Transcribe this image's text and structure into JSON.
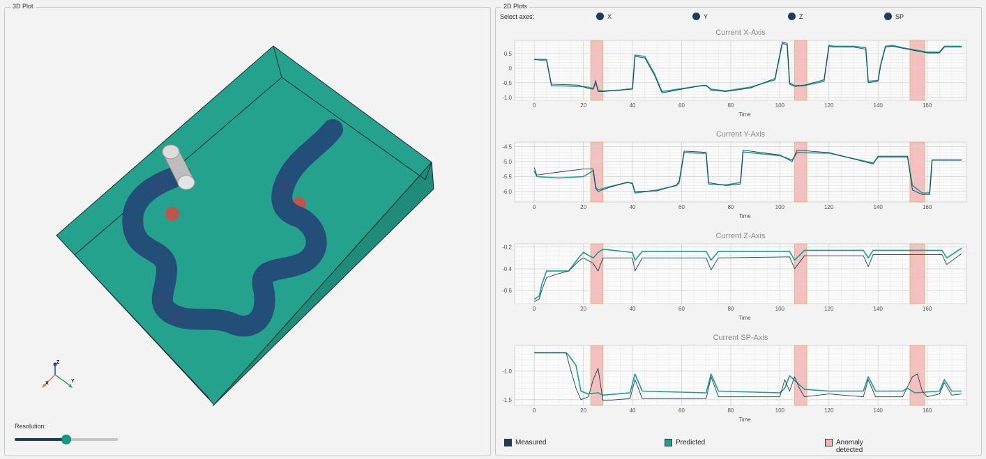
{
  "panel_3d": {
    "title": "3D Plot",
    "axis_labels": {
      "z": "Z",
      "x": "X",
      "y": "Y"
    },
    "resolution_label": "Resolution:",
    "resolution_value": 0.5,
    "colors": {
      "workpiece": "#25a28e",
      "toolpath": "#234a77",
      "anomaly": "#c0544a",
      "tool": "#cfcfcf"
    }
  },
  "panel_2d": {
    "title": "2D Plots",
    "select_axes_label": "Select axes:",
    "axis_options": [
      {
        "label": "X"
      },
      {
        "label": "Y"
      },
      {
        "label": "Z"
      },
      {
        "label": "SP"
      }
    ],
    "legend": [
      {
        "label": "Measured",
        "color": "#1d3d5c"
      },
      {
        "label": "Predicted",
        "color": "#17a08a"
      },
      {
        "label": "Anomaly detected",
        "color": "#f2b5b5"
      }
    ]
  },
  "chart_data": [
    {
      "type": "line",
      "title": "Current X-Axis",
      "xlabel": "Time",
      "xlim": [
        -8,
        176
      ],
      "ylim": [
        -1.1,
        0.95
      ],
      "xticks": [
        0,
        20,
        40,
        60,
        80,
        100,
        120,
        140,
        160
      ],
      "yticks": [
        0.5,
        0,
        -0.5,
        -1.0
      ],
      "ytick_labels": [
        "0.5",
        "0",
        "-0.5",
        "-1.0"
      ],
      "anomaly_ranges": [
        [
          23,
          28
        ],
        [
          106,
          111
        ],
        [
          153,
          159
        ]
      ],
      "series": [
        {
          "name": "Predicted",
          "x": [
            0,
            5,
            7,
            18,
            22,
            24,
            25,
            26,
            28,
            35,
            40,
            41,
            45,
            49,
            52,
            60,
            68,
            70,
            72,
            78,
            88,
            98,
            101,
            103,
            104,
            106,
            110,
            118,
            120,
            122,
            130,
            135,
            136,
            140,
            141,
            143,
            146,
            150,
            160,
            165,
            167,
            174
          ],
          "y": [
            0.3,
            0.3,
            -0.6,
            -0.62,
            -0.65,
            -0.7,
            -0.5,
            -0.75,
            -0.78,
            -0.75,
            -0.7,
            0.45,
            0.4,
            -0.2,
            -0.8,
            -0.7,
            -0.6,
            -0.6,
            -0.72,
            -0.78,
            -0.65,
            -0.4,
            0.85,
            0.8,
            -0.55,
            -0.62,
            -0.6,
            -0.45,
            0.78,
            0.75,
            0.75,
            0.7,
            -0.45,
            -0.42,
            0.1,
            0.75,
            0.78,
            0.7,
            0.55,
            0.55,
            0.75,
            0.75
          ]
        },
        {
          "name": "Measured",
          "x": [
            0,
            5,
            7,
            18,
            22,
            24,
            25,
            26,
            28,
            35,
            40,
            41,
            45,
            49,
            52,
            60,
            68,
            70,
            72,
            78,
            88,
            98,
            101,
            103,
            104,
            106,
            110,
            118,
            120,
            122,
            130,
            135,
            136,
            140,
            141,
            143,
            146,
            150,
            160,
            165,
            167,
            174
          ],
          "y": [
            0.3,
            0.25,
            -0.55,
            -0.58,
            -0.7,
            -0.72,
            -0.42,
            -0.8,
            -0.8,
            -0.75,
            -0.72,
            0.4,
            0.35,
            -0.25,
            -0.85,
            -0.72,
            -0.6,
            -0.58,
            -0.75,
            -0.8,
            -0.68,
            -0.35,
            0.9,
            0.85,
            -0.5,
            -0.6,
            -0.58,
            -0.4,
            0.75,
            0.72,
            0.72,
            0.65,
            -0.5,
            -0.45,
            0.05,
            0.72,
            0.75,
            0.68,
            0.52,
            0.52,
            0.72,
            0.72
          ]
        }
      ]
    },
    {
      "type": "line",
      "title": "Current Y-Axis",
      "xlabel": "Time",
      "xlim": [
        -8,
        176
      ],
      "ylim": [
        -6.35,
        -4.35
      ],
      "xticks": [
        0,
        20,
        40,
        60,
        80,
        100,
        120,
        140,
        160
      ],
      "yticks": [
        -4.5,
        -5.0,
        -5.5,
        -6.0
      ],
      "ytick_labels": [
        "-4.5",
        "-5.0",
        "-5.5",
        "-6.0"
      ],
      "anomaly_ranges": [
        [
          23,
          28
        ],
        [
          106,
          111
        ],
        [
          153,
          159
        ]
      ],
      "series": [
        {
          "name": "Predicted",
          "x": [
            0,
            1,
            10,
            20,
            24,
            25,
            26,
            30,
            38,
            40,
            41,
            50,
            58,
            59,
            61,
            68,
            70,
            71,
            78,
            84,
            85,
            100,
            105,
            107,
            120,
            138,
            140,
            150,
            152,
            154,
            158,
            161,
            162,
            174
          ],
          "y": [
            -5.3,
            -5.5,
            -5.55,
            -5.5,
            -5.3,
            -5.85,
            -5.95,
            -5.85,
            -5.7,
            -5.72,
            -6.05,
            -5.95,
            -5.8,
            -5.7,
            -4.7,
            -4.72,
            -4.72,
            -5.75,
            -5.78,
            -5.7,
            -4.68,
            -4.8,
            -4.95,
            -4.7,
            -4.72,
            -5.05,
            -4.85,
            -4.85,
            -4.85,
            -5.8,
            -6.05,
            -6.05,
            -4.95,
            -4.95
          ]
        },
        {
          "name": "Measured",
          "x": [
            0,
            1,
            10,
            20,
            24,
            25,
            26,
            30,
            38,
            40,
            41,
            50,
            58,
            59,
            61,
            68,
            70,
            71,
            78,
            84,
            85,
            100,
            105,
            107,
            120,
            138,
            140,
            150,
            152,
            154,
            158,
            161,
            162,
            174
          ],
          "y": [
            -5.2,
            -5.45,
            -5.35,
            -5.25,
            -5.25,
            -5.9,
            -6.0,
            -5.88,
            -5.68,
            -5.75,
            -6.0,
            -5.98,
            -5.78,
            -5.65,
            -4.65,
            -4.68,
            -4.7,
            -5.7,
            -5.8,
            -5.75,
            -4.62,
            -4.78,
            -5.0,
            -4.62,
            -4.7,
            -5.08,
            -4.82,
            -4.82,
            -4.82,
            -5.95,
            -6.1,
            -6.1,
            -4.95,
            -4.95
          ]
        }
      ]
    },
    {
      "type": "line",
      "title": "Current Z-Axis",
      "xlabel": "Time",
      "xlim": [
        -8,
        176
      ],
      "ylim": [
        -0.72,
        -0.17
      ],
      "xticks": [
        0,
        20,
        40,
        60,
        80,
        100,
        120,
        140,
        160
      ],
      "yticks": [
        -0.2,
        -0.4,
        -0.6
      ],
      "ytick_labels": [
        "-0.2",
        "-0.4",
        "-0.6"
      ],
      "anomaly_ranges": [
        [
          23,
          28
        ],
        [
          106,
          111
        ],
        [
          153,
          159
        ]
      ],
      "series": [
        {
          "name": "Predicted",
          "x": [
            0,
            2,
            3,
            5,
            9,
            14,
            18,
            20,
            24,
            26,
            28,
            40,
            41,
            44,
            70,
            72,
            75,
            104,
            106,
            110,
            134,
            136,
            138,
            166,
            168,
            174
          ],
          "y": [
            -0.68,
            -0.65,
            -0.55,
            -0.42,
            -0.42,
            -0.42,
            -0.3,
            -0.25,
            -0.3,
            -0.25,
            -0.22,
            -0.25,
            -0.32,
            -0.24,
            -0.24,
            -0.32,
            -0.24,
            -0.24,
            -0.32,
            -0.23,
            -0.23,
            -0.3,
            -0.23,
            -0.23,
            -0.3,
            -0.21
          ]
        },
        {
          "name": "Measured",
          "x": [
            0,
            2,
            3,
            5,
            9,
            14,
            18,
            20,
            24,
            26,
            28,
            40,
            41,
            44,
            70,
            72,
            75,
            104,
            106,
            110,
            134,
            136,
            138,
            166,
            168,
            174
          ],
          "y": [
            -0.7,
            -0.68,
            -0.6,
            -0.48,
            -0.45,
            -0.42,
            -0.33,
            -0.3,
            -0.35,
            -0.42,
            -0.3,
            -0.3,
            -0.42,
            -0.3,
            -0.3,
            -0.41,
            -0.3,
            -0.29,
            -0.4,
            -0.28,
            -0.28,
            -0.38,
            -0.27,
            -0.27,
            -0.36,
            -0.26
          ]
        }
      ]
    },
    {
      "type": "line",
      "title": "Current SP-Axis",
      "xlabel": "Time",
      "xlim": [
        -8,
        176
      ],
      "ylim": [
        -1.6,
        -0.55
      ],
      "xticks": [
        0,
        20,
        40,
        60,
        80,
        100,
        120,
        140,
        160
      ],
      "yticks": [
        -1.0,
        -1.5
      ],
      "ytick_labels": [
        "-1.0",
        "-1.5"
      ],
      "anomaly_ranges": [
        [
          23,
          28
        ],
        [
          106,
          111
        ],
        [
          153,
          159
        ]
      ],
      "series": [
        {
          "name": "Predicted",
          "x": [
            0,
            13,
            14,
            17,
            19,
            22,
            26,
            28,
            39,
            41,
            44,
            70,
            72,
            75,
            100,
            102,
            104,
            110,
            120,
            134,
            136,
            139,
            150,
            152,
            155,
            165,
            167,
            170,
            174
          ],
          "y": [
            -0.68,
            -0.68,
            -0.72,
            -0.9,
            -1.35,
            -1.4,
            -1.38,
            -1.42,
            -1.38,
            -1.05,
            -1.35,
            -1.38,
            -1.05,
            -1.35,
            -1.38,
            -1.3,
            -1.08,
            -1.32,
            -1.35,
            -1.35,
            -1.1,
            -1.35,
            -1.35,
            -1.3,
            -1.38,
            -1.35,
            -1.15,
            -1.35,
            -1.35
          ]
        },
        {
          "name": "Measured",
          "x": [
            0,
            13,
            14,
            17,
            19,
            22,
            24,
            26,
            28,
            39,
            41,
            44,
            70,
            72,
            75,
            100,
            102,
            104,
            106,
            108,
            110,
            120,
            134,
            136,
            139,
            150,
            154,
            156,
            158,
            160,
            165,
            167,
            170,
            174
          ],
          "y": [
            -0.68,
            -0.68,
            -0.85,
            -1.3,
            -1.5,
            -1.45,
            -1.15,
            -0.95,
            -1.52,
            -1.48,
            -1.15,
            -1.48,
            -1.48,
            -1.1,
            -1.45,
            -1.45,
            -1.15,
            -1.35,
            -1.1,
            -1.3,
            -1.45,
            -1.4,
            -1.45,
            -1.15,
            -1.45,
            -1.45,
            -1.1,
            -1.05,
            -1.35,
            -1.45,
            -1.4,
            -1.2,
            -1.42,
            -1.4
          ]
        }
      ]
    }
  ]
}
